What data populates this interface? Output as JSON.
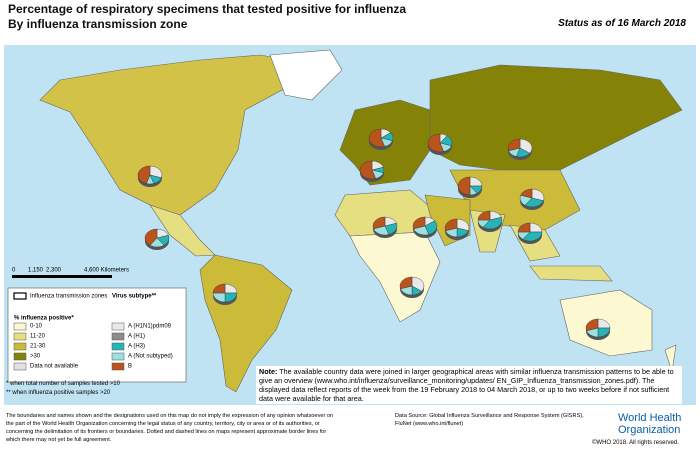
{
  "header": {
    "title": [
      "Percentage of respiratory specimens that tested positive for influenza",
      "By influenza transmission zone"
    ],
    "status": "Status as of 16 March 2018"
  },
  "scale": [
    "0",
    "1,150",
    "2,300",
    "4,600 Kilometers"
  ],
  "legend": {
    "zones_label": "Influenza transmission zones",
    "subtype_title": "Virus subtype**",
    "positive_title": "% influenza positive*",
    "positive_classes": [
      {
        "label": "0-10",
        "color": "#fbf8d2"
      },
      {
        "label": "11-20",
        "color": "#e6df82"
      },
      {
        "label": "21-30",
        "color": "#cbbb38"
      },
      {
        "label": ">30",
        "color": "#848308"
      },
      {
        "label": "Data not available",
        "color": "#e2e2e2"
      }
    ],
    "subtypes": [
      {
        "name": "A (H1N1)pdm09",
        "color": "#e9e9e9"
      },
      {
        "name": "A (H1)",
        "color": "#8c8c8c"
      },
      {
        "name": "A (H3)",
        "color": "#26b4b7"
      },
      {
        "name": "A (Not subtyped)",
        "color": "#9edfe0"
      },
      {
        "name": "B",
        "color": "#b8541c"
      }
    ]
  },
  "pies": [
    {
      "values": [
        30,
        0,
        15,
        10,
        45
      ]
    },
    {
      "values": [
        20,
        0,
        20,
        20,
        40
      ]
    },
    {
      "values": [
        25,
        0,
        25,
        25,
        25
      ]
    },
    {
      "values": [
        15,
        0,
        15,
        15,
        55
      ]
    },
    {
      "values": [
        20,
        0,
        10,
        15,
        55
      ]
    },
    {
      "values": [
        10,
        0,
        20,
        15,
        55
      ]
    },
    {
      "values": [
        35,
        0,
        20,
        15,
        30
      ]
    },
    {
      "values": [
        25,
        0,
        15,
        10,
        50
      ]
    },
    {
      "values": [
        30,
        0,
        30,
        20,
        20
      ]
    },
    {
      "values": [
        20,
        0,
        25,
        25,
        30
      ]
    },
    {
      "values": [
        15,
        0,
        30,
        25,
        30
      ]
    },
    {
      "values": [
        30,
        0,
        20,
        20,
        30
      ]
    },
    {
      "values": [
        25,
        0,
        35,
        15,
        25
      ]
    },
    {
      "values": [
        35,
        0,
        15,
        20,
        30
      ]
    },
    {
      "values": [
        25,
        0,
        25,
        20,
        30
      ]
    },
    {
      "values": [
        20,
        0,
        40,
        15,
        25
      ]
    }
  ],
  "footnotes": [
    "* when total number of samples tested >10",
    "** when influenza positive samples >20"
  ],
  "note": {
    "label": "Note:",
    "text": "The available country data were joined in larger geographical areas with similar influenza transmission patterns to be able to give an overview (www.who.int/influenza/surveillance_monitoring/updates/ EN_GIP_Influenza_transmission_zones.pdf). The displayed data reflect reports of the week from the 19 February 2018 to 04 March 2018, or up to two weeks before if not sufficient data were available for that area."
  },
  "disclaimer": "The boundaries and names shown and the designations used on this map do not imply the expression of any opinion whatsoever on the part of the World Health Organization concerning the legal status of any country, territory, city or area or of its authorities, or concerning the delimitation of its frontiers or boundaries. Dotted and dashed lines on maps represent approximate border lines for which there may not yet be full agreement.",
  "data_source": "Data Source: Global Influenza Surveillance and Response System (GISRS), FluNet (www.who.int/flunet)",
  "who": [
    "World Health",
    "Organization"
  ],
  "copyright": "©WHO 2018. All rights reserved."
}
